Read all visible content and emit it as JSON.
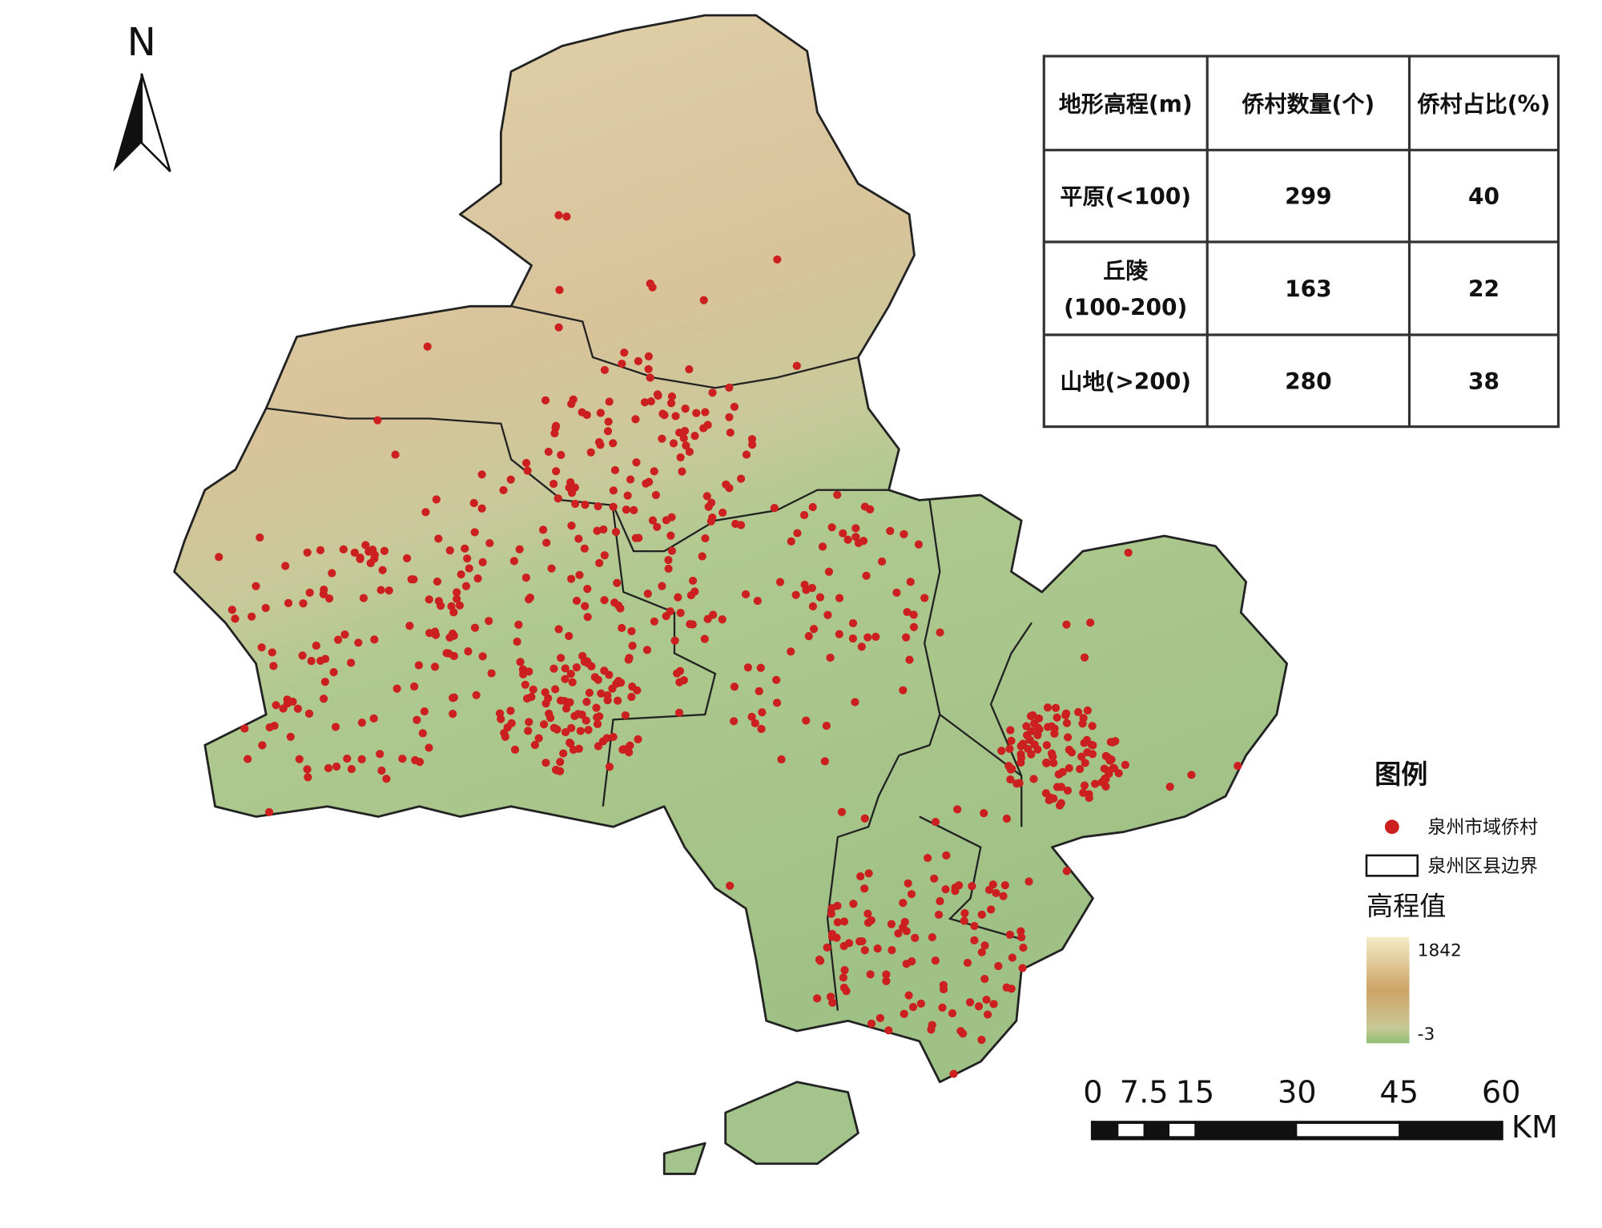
{
  "north_arrow": "N",
  "table": {
    "header": [
      "地形高程(m)",
      "侨村数量(个)",
      "侨村占比(%)"
    ],
    "rows": [
      [
        "平原(<100)",
        299,
        40
      ],
      [
        [
          "丘陵",
          "(100-200)"
        ],
        163,
        22
      ],
      [
        "山地(>200)",
        280,
        38
      ]
    ]
  },
  "legend": {
    "title": "图例",
    "items": [
      "泉州市域侨村",
      "泉州区县边界"
    ],
    "elevation": {
      "title": "高程值",
      "max": 1842,
      "min": -3
    }
  },
  "scale_bar": {
    "ticks": [
      0,
      7.5,
      15,
      30,
      45,
      60
    ],
    "unit": "KM"
  }
}
